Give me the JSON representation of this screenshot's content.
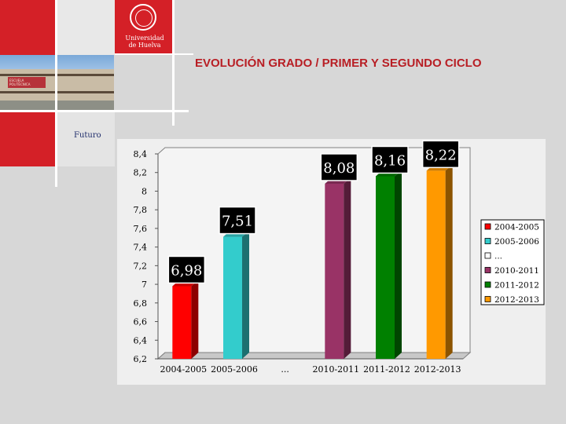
{
  "slide": {
    "title": "EVOLUCIÓN GRADO / PRIMER Y SEGUNDO CICLO",
    "sidebar_text": "Futuro",
    "logo_text": "Universidad de Huelva"
  },
  "colors": {
    "brand_red": "#d42027",
    "title_red": "#b81e24"
  },
  "chart_data": {
    "type": "bar",
    "title": "",
    "xlabel": "",
    "ylabel": "",
    "categories": [
      "2004-2005",
      "2005-2006",
      "...",
      "2010-2011",
      "2011-2012",
      "2012-2013"
    ],
    "values": [
      6.98,
      7.51,
      null,
      8.08,
      8.16,
      8.22
    ],
    "value_labels": [
      "6,98",
      "7,51",
      "",
      "8,08",
      "8,16",
      "8,22"
    ],
    "colors": [
      "#ff0000",
      "#33cccc",
      "#ffffff",
      "#993366",
      "#008000",
      "#ff9900"
    ],
    "ylim": [
      6.2,
      8.4
    ],
    "yticks": [
      8.4,
      8.2,
      8,
      7.8,
      7.6,
      7.4,
      7.2,
      7,
      6.8,
      6.6,
      6.4,
      6.2
    ],
    "ytick_labels": [
      "8,4",
      "8,2",
      "8",
      "7,8",
      "7,6",
      "7,4",
      "7,2",
      "7",
      "6,8",
      "6,6",
      "6,4",
      "6,2"
    ],
    "grid": false,
    "legend": {
      "position": "right",
      "entries": [
        "2004-2005",
        "2005-2006",
        "...",
        "2010-2011",
        "2011-2012",
        "2012-2013"
      ]
    }
  }
}
